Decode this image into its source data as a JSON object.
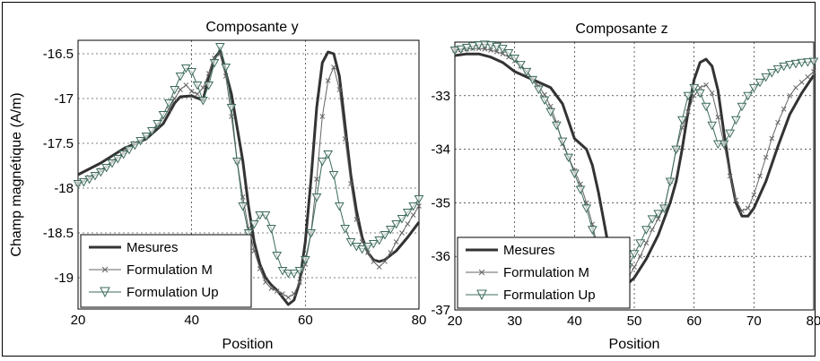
{
  "chart_data": [
    {
      "type": "line",
      "title": "Composante y",
      "xlabel": "Position",
      "ylabel": "Champ magnétique (A/m)",
      "xlim": [
        20,
        80
      ],
      "ylim": [
        -19.35,
        -16.35
      ],
      "xticks": [
        "20",
        "40",
        "60",
        "80"
      ],
      "xtick_values": [
        20,
        40,
        60,
        80
      ],
      "yticks": [
        "-16.5",
        "-17",
        "-17.5",
        "-18",
        "-18.5",
        "-19"
      ],
      "ytick_values": [
        -16.5,
        -17,
        -17.5,
        -18,
        -18.5,
        -19
      ],
      "grid": true,
      "legend_position": "bottom-left",
      "series": [
        {
          "name": "Mesures",
          "marker": "none",
          "x": [
            20,
            24,
            28,
            32,
            35,
            37,
            38,
            40,
            42,
            43,
            44,
            45,
            47,
            49,
            50,
            51,
            52,
            53,
            54,
            55,
            56,
            57,
            58,
            59,
            60,
            61,
            62,
            63,
            64,
            65,
            66,
            67,
            68,
            69,
            70,
            71,
            72,
            73,
            74,
            76,
            78,
            80
          ],
          "y": [
            -17.85,
            -17.72,
            -17.56,
            -17.45,
            -17.28,
            -17.05,
            -16.98,
            -16.97,
            -17.02,
            -16.75,
            -16.55,
            -16.47,
            -16.95,
            -17.7,
            -18.2,
            -18.6,
            -18.85,
            -19.0,
            -19.08,
            -19.14,
            -19.22,
            -19.3,
            -19.25,
            -19.05,
            -18.6,
            -17.9,
            -17.1,
            -16.6,
            -16.48,
            -16.5,
            -16.75,
            -17.3,
            -17.85,
            -18.25,
            -18.55,
            -18.72,
            -18.8,
            -18.82,
            -18.8,
            -18.7,
            -18.55,
            -18.38
          ]
        },
        {
          "name": "Formulation M",
          "marker": "x",
          "x": [
            20,
            22,
            24,
            26,
            28,
            30,
            32,
            34,
            36,
            37,
            38,
            39,
            40,
            41,
            42,
            43,
            44,
            45,
            46,
            47,
            48,
            49,
            50,
            51,
            52,
            53,
            54,
            55,
            56,
            57,
            58,
            59,
            60,
            61,
            62,
            63,
            64,
            65,
            66,
            67,
            68,
            69,
            70,
            71,
            72,
            73,
            74,
            75,
            76,
            77,
            78,
            79,
            80
          ],
          "y": [
            -17.95,
            -17.88,
            -17.8,
            -17.7,
            -17.6,
            -17.5,
            -17.42,
            -17.3,
            -17.12,
            -17.0,
            -16.9,
            -16.85,
            -16.92,
            -16.95,
            -16.88,
            -16.72,
            -16.55,
            -16.5,
            -16.75,
            -17.2,
            -17.7,
            -18.1,
            -18.45,
            -18.7,
            -18.9,
            -19.05,
            -19.12,
            -19.15,
            -19.18,
            -19.22,
            -19.18,
            -19.05,
            -18.85,
            -18.5,
            -17.9,
            -17.2,
            -16.8,
            -16.65,
            -16.9,
            -17.45,
            -17.95,
            -18.35,
            -18.6,
            -18.72,
            -18.82,
            -18.88,
            -18.82,
            -18.72,
            -18.6,
            -18.5,
            -18.4,
            -18.3,
            -18.2
          ]
        },
        {
          "name": "Formulation Up",
          "marker": "triangle",
          "x": [
            20,
            21,
            22,
            23,
            24,
            25,
            26,
            27,
            28,
            29,
            30,
            31,
            32,
            33,
            34,
            35,
            36,
            37,
            38,
            39,
            40,
            41,
            42,
            43,
            44,
            45,
            46,
            47,
            48,
            49,
            50,
            51,
            52,
            53,
            54,
            55,
            56,
            57,
            58,
            59,
            60,
            61,
            62,
            63,
            64,
            65,
            66,
            67,
            68,
            69,
            70,
            71,
            72,
            73,
            74,
            75,
            76,
            77,
            78,
            79,
            80
          ],
          "y": [
            -17.95,
            -17.93,
            -17.9,
            -17.86,
            -17.82,
            -17.77,
            -17.72,
            -17.67,
            -17.62,
            -17.57,
            -17.52,
            -17.47,
            -17.42,
            -17.36,
            -17.28,
            -17.18,
            -17.05,
            -16.9,
            -16.75,
            -16.66,
            -16.7,
            -16.85,
            -17.02,
            -16.85,
            -16.6,
            -16.42,
            -16.65,
            -17.1,
            -17.7,
            -18.2,
            -18.5,
            -18.4,
            -18.3,
            -18.3,
            -18.45,
            -18.75,
            -18.92,
            -18.95,
            -18.95,
            -18.92,
            -18.8,
            -18.5,
            -18.1,
            -17.7,
            -17.62,
            -17.85,
            -18.2,
            -18.45,
            -18.6,
            -18.65,
            -18.68,
            -18.65,
            -18.62,
            -18.58,
            -18.52,
            -18.46,
            -18.4,
            -18.34,
            -18.27,
            -18.2,
            -18.12
          ]
        }
      ]
    },
    {
      "type": "line",
      "title": "Composante z",
      "xlabel": "Position",
      "ylabel": "",
      "xlim": [
        20,
        80
      ],
      "ylim": [
        -37.0,
        -32.0
      ],
      "xticks": [
        "20",
        "30",
        "40",
        "50",
        "60",
        "70",
        "80"
      ],
      "xtick_values": [
        20,
        30,
        40,
        50,
        60,
        70,
        80
      ],
      "yticks": [
        "-33",
        "-34",
        "-35",
        "-36",
        "-37"
      ],
      "ytick_values": [
        -33,
        -34,
        -35,
        -36,
        -37
      ],
      "grid": true,
      "legend_position": "bottom-left",
      "series": [
        {
          "name": "Mesures",
          "marker": "none",
          "x": [
            20,
            22,
            24,
            26,
            28,
            30,
            32,
            34,
            36,
            38,
            40,
            41,
            42,
            43,
            44,
            45,
            46,
            47,
            48,
            50,
            52,
            54,
            56,
            57,
            58,
            59,
            60,
            61,
            62,
            63,
            64,
            65,
            66,
            67,
            68,
            69,
            70,
            72,
            74,
            76,
            78,
            80
          ],
          "y": [
            -32.25,
            -32.22,
            -32.22,
            -32.28,
            -32.38,
            -32.55,
            -32.65,
            -32.75,
            -32.85,
            -33.15,
            -33.8,
            -33.9,
            -34.0,
            -34.3,
            -34.8,
            -35.4,
            -36.0,
            -36.4,
            -36.6,
            -36.4,
            -36.05,
            -35.6,
            -35.0,
            -34.6,
            -34.0,
            -33.3,
            -32.7,
            -32.38,
            -32.32,
            -32.45,
            -32.9,
            -33.7,
            -34.45,
            -35.0,
            -35.25,
            -35.25,
            -35.1,
            -34.6,
            -33.95,
            -33.35,
            -32.95,
            -32.62
          ]
        },
        {
          "name": "Formulation M",
          "marker": "x",
          "x": [
            20,
            21,
            22,
            23,
            24,
            25,
            26,
            27,
            28,
            29,
            30,
            31,
            32,
            33,
            34,
            35,
            36,
            37,
            38,
            39,
            40,
            41,
            42,
            43,
            44,
            45,
            46,
            47,
            48,
            49,
            50,
            51,
            52,
            53,
            54,
            55,
            56,
            57,
            58,
            59,
            60,
            61,
            62,
            63,
            64,
            65,
            66,
            67,
            68,
            69,
            70,
            71,
            72,
            73,
            74,
            75,
            76,
            77,
            78,
            79,
            80
          ],
          "y": [
            -32.15,
            -32.14,
            -32.13,
            -32.12,
            -32.12,
            -32.13,
            -32.15,
            -32.18,
            -32.22,
            -32.28,
            -32.35,
            -32.45,
            -32.55,
            -32.68,
            -32.82,
            -32.98,
            -33.2,
            -33.5,
            -33.9,
            -34.15,
            -34.4,
            -34.65,
            -35.0,
            -35.4,
            -35.9,
            -36.35,
            -36.6,
            -36.65,
            -36.55,
            -36.4,
            -36.2,
            -36.0,
            -35.75,
            -35.5,
            -35.3,
            -35.1,
            -34.6,
            -34.0,
            -33.6,
            -33.3,
            -33.0,
            -32.85,
            -32.8,
            -32.95,
            -33.4,
            -33.9,
            -34.5,
            -34.95,
            -35.15,
            -35.1,
            -34.85,
            -34.5,
            -34.15,
            -33.8,
            -33.5,
            -33.25,
            -33.0,
            -32.85,
            -32.75,
            -32.65,
            -32.55
          ]
        },
        {
          "name": "Formulation Up",
          "marker": "triangle",
          "x": [
            20,
            21,
            22,
            23,
            24,
            25,
            26,
            27,
            28,
            29,
            30,
            31,
            32,
            33,
            34,
            35,
            36,
            37,
            38,
            39,
            40,
            41,
            42,
            43,
            44,
            45,
            46,
            47,
            48,
            49,
            50,
            51,
            52,
            53,
            54,
            55,
            56,
            57,
            58,
            59,
            60,
            61,
            62,
            63,
            64,
            65,
            66,
            67,
            68,
            69,
            70,
            71,
            72,
            73,
            74,
            75,
            76,
            77,
            78,
            79,
            80
          ],
          "y": [
            -32.15,
            -32.13,
            -32.1,
            -32.07,
            -32.05,
            -32.04,
            -32.05,
            -32.08,
            -32.12,
            -32.2,
            -32.3,
            -32.42,
            -32.55,
            -32.7,
            -32.88,
            -33.08,
            -33.3,
            -33.55,
            -33.85,
            -34.15,
            -34.45,
            -34.75,
            -35.1,
            -35.5,
            -35.95,
            -36.35,
            -36.55,
            -36.6,
            -36.45,
            -36.2,
            -35.95,
            -35.75,
            -35.5,
            -35.3,
            -35.2,
            -35.1,
            -34.6,
            -34.0,
            -33.45,
            -33.0,
            -32.85,
            -32.95,
            -33.2,
            -33.55,
            -33.9,
            -33.9,
            -33.7,
            -33.45,
            -33.2,
            -33.0,
            -32.85,
            -32.75,
            -32.65,
            -32.57,
            -32.5,
            -32.45,
            -32.42,
            -32.4,
            -32.38,
            -32.37,
            -32.36
          ]
        }
      ]
    }
  ]
}
